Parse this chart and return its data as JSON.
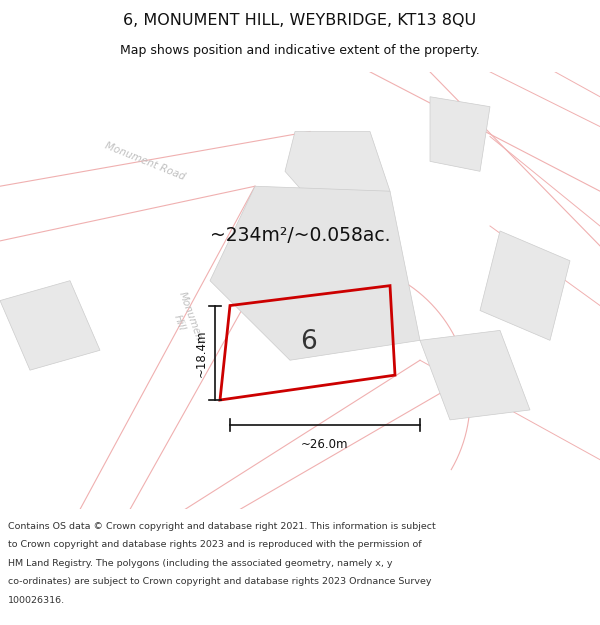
{
  "title": "6, MONUMENT HILL, WEYBRIDGE, KT13 8QU",
  "subtitle": "Map shows position and indicative extent of the property.",
  "area_text": "~234m²/~0.058ac.",
  "number_label": "6",
  "dim_width": "~26.0m",
  "dim_height": "~18.4m",
  "footer_lines": [
    "Contains OS data © Crown copyright and database right 2021. This information is subject",
    "to Crown copyright and database rights 2023 and is reproduced with the permission of",
    "HM Land Registry. The polygons (including the associated geometry, namely x, y",
    "co-ordinates) are subject to Crown copyright and database rights 2023 Ordnance Survey",
    "100026316."
  ],
  "bg_white": "#ffffff",
  "map_bg": "#f8f8f8",
  "road_line_color": "#f0b0b0",
  "road_fill_color": "#f9f0f0",
  "building_fill": "#e8e8e8",
  "building_edge": "#cccccc",
  "property_fill": "#e8e8e8",
  "property_outline": "#cc0000",
  "road_label_color": "#c0c0c0",
  "title_color": "#111111",
  "footer_color": "#333333",
  "dim_line_color": "#111111",
  "area_text_color": "#111111",
  "number_color": "#333333"
}
